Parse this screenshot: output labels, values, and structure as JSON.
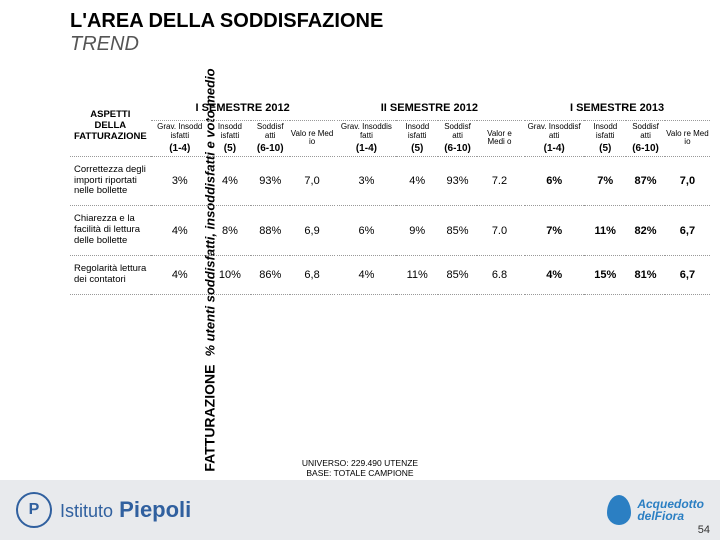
{
  "vertical": {
    "group": "FATTURAZIONE",
    "metric": "% utenti soddisfatti, insoddisfatti e voto medio"
  },
  "title": {
    "main": "L'AREA DELLA SODDISFAZIONE",
    "sub": "TREND"
  },
  "semesters": [
    "I SEMESTRE 2012",
    "II SEMESTRE 2012",
    "I SEMESTRE 2013"
  ],
  "aspect_header": "ASPETTI DELLA FATTURAZIONE",
  "subheaders": {
    "grav": "Grav. Insodd isfatti",
    "grav2": "Grav. Insoddis fatti",
    "grav3": "Grav. Insoddisf atti",
    "insod": "Insodd isfatti",
    "sodd": "Soddisf atti",
    "sodd2": "Soddisf atti",
    "voto": "Valo re Med io",
    "voto2": "Valor e Medi o",
    "r1": "(1-4)",
    "r2": "(5)",
    "r3": "(6-10)"
  },
  "rows": [
    {
      "aspect": "Correttezza degli importi riportati nelle bollette",
      "s1": [
        "3%",
        "4%",
        "93%",
        "7,0"
      ],
      "s2": [
        "3%",
        "4%",
        "93%",
        "7.2"
      ],
      "s3": [
        "6%",
        "7%",
        "87%",
        "7,0"
      ]
    },
    {
      "aspect": "Chiarezza e la facilità di lettura delle bollette",
      "s1": [
        "4%",
        "8%",
        "88%",
        "6,9"
      ],
      "s2": [
        "6%",
        "9%",
        "85%",
        "7.0"
      ],
      "s3": [
        "7%",
        "11%",
        "82%",
        "6,7"
      ]
    },
    {
      "aspect": "Regolarità lettura dei contatori",
      "s1": [
        "4%",
        "10%",
        "86%",
        "6,8"
      ],
      "s2": [
        "4%",
        "11%",
        "85%",
        "6.8"
      ],
      "s3": [
        "4%",
        "15%",
        "81%",
        "6,7"
      ]
    }
  ],
  "footnote": {
    "line1": "UNIVERSO: 229.490 UTENZE",
    "line2": "BASE: TOTALE CAMPIONE"
  },
  "footer": {
    "piepoli_prefix": "Istituto",
    "piepoli_name": "Piepoli",
    "acq_line1": "Acquedotto",
    "acq_line2": "delFiora"
  },
  "page": "54"
}
